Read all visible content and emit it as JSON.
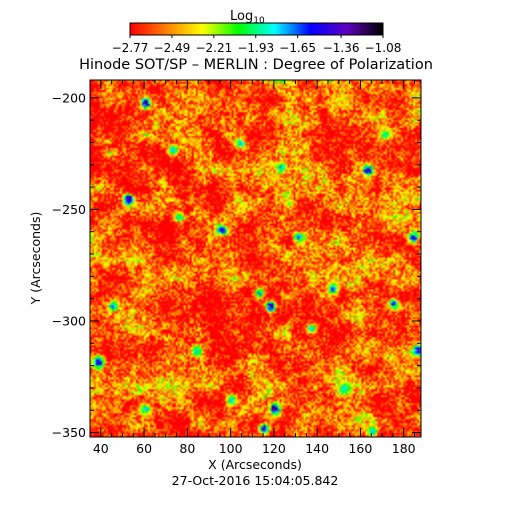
{
  "chart_data": {
    "type": "heatmap",
    "title": "Hinode SOT/SP – MERLIN : Degree of Polarization",
    "subtitle": "27-Oct-2016 15:04:05.842",
    "xlabel": "X (Arcseconds)",
    "ylabel": "Y (Arcseconds)",
    "xlim": [
      35,
      188
    ],
    "ylim": [
      -352,
      -192
    ],
    "x_ticks": [
      40,
      60,
      80,
      100,
      120,
      140,
      160,
      180
    ],
    "y_ticks": [
      -200,
      -250,
      -300,
      -350
    ],
    "x_tick_labels": [
      "40",
      "60",
      "80",
      "100",
      "120",
      "140",
      "160",
      "180"
    ],
    "y_tick_labels": [
      "−200",
      "−250",
      "−300",
      "−350"
    ],
    "colorbar": {
      "label": "Log",
      "label_sub": "10",
      "range": [
        -2.77,
        -1.08
      ],
      "tick_values": [
        -2.77,
        -2.49,
        -2.21,
        -1.93,
        -1.65,
        -1.36,
        -1.08
      ],
      "tick_labels": [
        "−2.77",
        "−2.49",
        "−2.21",
        "−1.93",
        "−1.65",
        "−1.36",
        "−1.08"
      ],
      "colormap": [
        "#ff0000",
        "#ff8000",
        "#ffff00",
        "#00ff00",
        "#00ffff",
        "#0000ff",
        "#6000c0",
        "#000000"
      ]
    },
    "background_level": -2.62,
    "patches": [
      {
        "x": 60.5,
        "y": -202,
        "value": -1.2
      },
      {
        "x": 52.5,
        "y": -245,
        "value": -1.2
      },
      {
        "x": 76,
        "y": -253,
        "value": -1.75
      },
      {
        "x": 104,
        "y": -220,
        "value": -1.75
      },
      {
        "x": 123,
        "y": -231,
        "value": -1.6
      },
      {
        "x": 163,
        "y": -232,
        "value": -1.25
      },
      {
        "x": 171,
        "y": -216,
        "value": -1.75
      },
      {
        "x": 184,
        "y": -262,
        "value": -1.3
      },
      {
        "x": 95.5,
        "y": -259,
        "value": -1.45
      },
      {
        "x": 113,
        "y": -287,
        "value": -1.65
      },
      {
        "x": 147,
        "y": -285,
        "value": -1.55
      },
      {
        "x": 118,
        "y": -293,
        "value": -1.2
      },
      {
        "x": 38.5,
        "y": -318,
        "value": -1.35
      },
      {
        "x": 120,
        "y": -339,
        "value": -1.08
      },
      {
        "x": 115,
        "y": -348,
        "value": -1.35
      },
      {
        "x": 152,
        "y": -330,
        "value": -1.75
      },
      {
        "x": 84,
        "y": -313,
        "value": -1.75
      },
      {
        "x": 137,
        "y": -303,
        "value": -1.75
      },
      {
        "x": 186,
        "y": -313,
        "value": -1.35
      },
      {
        "x": 60,
        "y": -339,
        "value": -1.75
      },
      {
        "x": 165,
        "y": -349,
        "value": -1.75
      },
      {
        "x": 131,
        "y": -262,
        "value": -1.65
      },
      {
        "x": 73,
        "y": -223,
        "value": -1.75
      },
      {
        "x": 45,
        "y": -293,
        "value": -1.65
      },
      {
        "x": 100,
        "y": -335,
        "value": -1.75
      },
      {
        "x": 175,
        "y": -292,
        "value": -1.55
      }
    ]
  }
}
